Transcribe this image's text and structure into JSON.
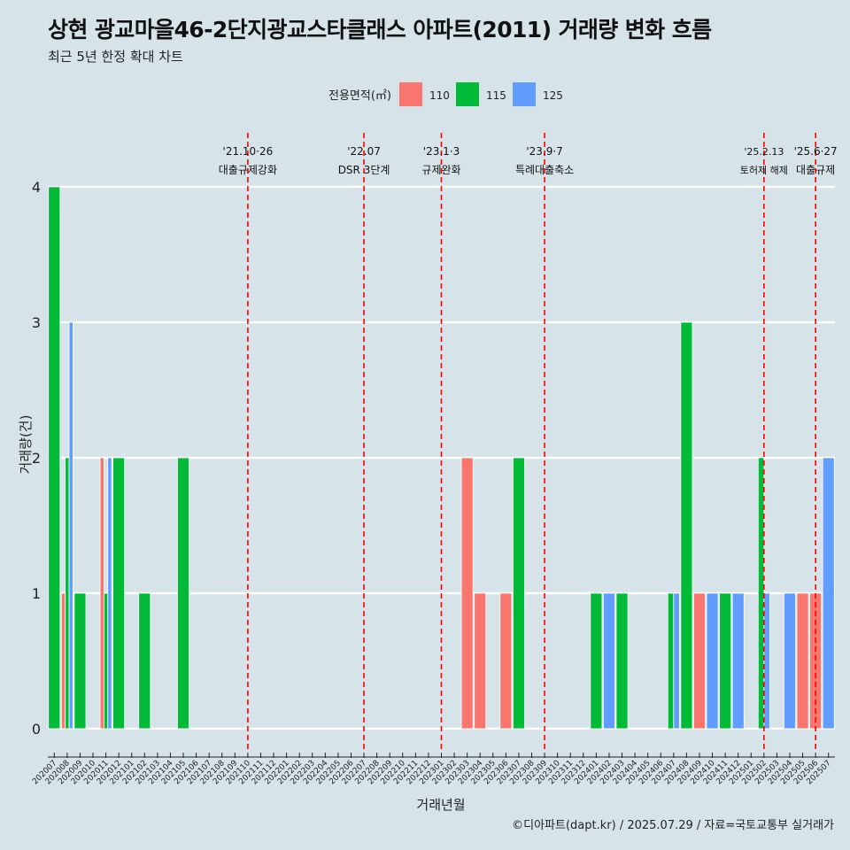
{
  "title": "상현 광교마을46-2단지광교스타클래스 아파트(2011) 거래량 변화 흐름",
  "subtitle": "최근 5년 한정 확대 차트",
  "caption": "©디아파트(dapt.kr) / 2025.07.29 / 자료=국토교통부 실거래가",
  "colors": {
    "110": "#f8766d",
    "115": "#00ba38",
    "125": "#619cff",
    "event_line": "#ff0000",
    "background": "#d6e4ea",
    "grid": "#ffffff"
  },
  "chart_data": {
    "type": "bar",
    "title": "상현 광교마을46-2단지광교스타클래스 아파트(2011) 거래량 변화 흐름",
    "subtitle": "최근 5년 한정 확대 차트",
    "xlabel": "거래년월",
    "ylabel": "거래량(건)",
    "ylim": [
      0,
      4
    ],
    "yticks": [
      0,
      1,
      2,
      3,
      4
    ],
    "grid": true,
    "legend": {
      "title": "전용면적(㎡)",
      "position": "top",
      "entries": [
        "110",
        "115",
        "125"
      ]
    },
    "categories": [
      "202007",
      "202008",
      "202009",
      "202010",
      "202011",
      "202012",
      "202101",
      "202102",
      "202103",
      "202104",
      "202105",
      "202106",
      "202107",
      "202108",
      "202109",
      "202110",
      "202111",
      "202112",
      "202201",
      "202202",
      "202203",
      "202204",
      "202205",
      "202206",
      "202207",
      "202208",
      "202209",
      "202210",
      "202211",
      "202212",
      "202301",
      "202302",
      "202303",
      "202304",
      "202305",
      "202306",
      "202307",
      "202308",
      "202309",
      "202310",
      "202311",
      "202312",
      "202401",
      "202402",
      "202403",
      "202404",
      "202405",
      "202406",
      "202407",
      "202408",
      "202409",
      "202410",
      "202411",
      "202412",
      "202501",
      "202502",
      "202503",
      "202504",
      "202505",
      "202506",
      "202507"
    ],
    "bars": [
      {
        "month": "202007",
        "area": "115",
        "value": 4
      },
      {
        "month": "202008",
        "area": "110",
        "value": 1
      },
      {
        "month": "202008",
        "area": "115",
        "value": 2
      },
      {
        "month": "202008",
        "area": "125",
        "value": 3
      },
      {
        "month": "202009",
        "area": "115",
        "value": 1
      },
      {
        "month": "202011",
        "area": "110",
        "value": 2
      },
      {
        "month": "202011",
        "area": "115",
        "value": 1
      },
      {
        "month": "202011",
        "area": "125",
        "value": 2
      },
      {
        "month": "202012",
        "area": "115",
        "value": 2
      },
      {
        "month": "202102",
        "area": "115",
        "value": 1
      },
      {
        "month": "202105",
        "area": "115",
        "value": 2
      },
      {
        "month": "202303",
        "area": "110",
        "value": 2
      },
      {
        "month": "202304",
        "area": "110",
        "value": 1
      },
      {
        "month": "202306",
        "area": "110",
        "value": 1
      },
      {
        "month": "202307",
        "area": "115",
        "value": 2
      },
      {
        "month": "202401",
        "area": "115",
        "value": 1
      },
      {
        "month": "202402",
        "area": "125",
        "value": 1
      },
      {
        "month": "202403",
        "area": "115",
        "value": 1
      },
      {
        "month": "202407",
        "area": "115",
        "value": 1
      },
      {
        "month": "202407",
        "area": "125",
        "value": 1
      },
      {
        "month": "202408",
        "area": "115",
        "value": 3
      },
      {
        "month": "202409",
        "area": "110",
        "value": 1
      },
      {
        "month": "202410",
        "area": "125",
        "value": 1
      },
      {
        "month": "202411",
        "area": "115",
        "value": 1
      },
      {
        "month": "202412",
        "area": "125",
        "value": 1
      },
      {
        "month": "202502",
        "area": "115",
        "value": 2
      },
      {
        "month": "202502",
        "area": "125",
        "value": 1
      },
      {
        "month": "202504",
        "area": "125",
        "value": 1
      },
      {
        "month": "202505",
        "area": "110",
        "value": 1
      },
      {
        "month": "202506",
        "area": "110",
        "value": 1
      },
      {
        "month": "202507",
        "area": "125",
        "value": 2
      }
    ],
    "events": [
      {
        "month": "202110",
        "date": "'21.10·26",
        "label": "대출규제강화"
      },
      {
        "month": "202207",
        "date": "'22.07",
        "label": "DSR 3단계"
      },
      {
        "month": "202301",
        "date": "'23.1·3",
        "label": "규제완화"
      },
      {
        "month": "202309",
        "date": "'23.9·7",
        "label": "특례대출축소"
      },
      {
        "month": "202502",
        "date": "'25.2.13",
        "label": "토허제 해제"
      },
      {
        "month": "202506",
        "date": "'25.6·27",
        "label": "대출규제"
      }
    ]
  }
}
